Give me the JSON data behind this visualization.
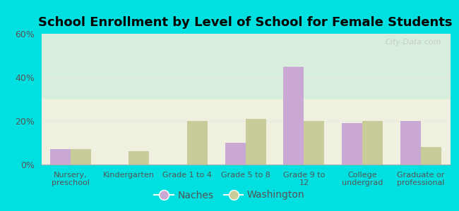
{
  "title": "School Enrollment by Level of School for Female Students",
  "categories": [
    "Nursery,\npreschool",
    "Kindergarten",
    "Grade 1 to 4",
    "Grade 5 to 8",
    "Grade 9 to\n12",
    "College\nundergrad",
    "Graduate or\nprofessional"
  ],
  "naches": [
    7,
    0,
    0,
    10,
    45,
    19,
    20
  ],
  "washington": [
    7,
    6,
    20,
    21,
    20,
    20,
    8
  ],
  "naches_color": "#c9a8d4",
  "washington_color": "#c8cc99",
  "background_outer": "#00e0e0",
  "background_inner_top": "#d8eedd",
  "background_inner_bottom": "#f0f0e0",
  "ylim": [
    0,
    60
  ],
  "yticks": [
    0,
    20,
    40,
    60
  ],
  "ytick_labels": [
    "0%",
    "20%",
    "40%",
    "60%"
  ],
  "legend_naches": "Naches",
  "legend_washington": "Washington",
  "bar_width": 0.35,
  "grid_color": "#e8e8e8",
  "watermark": "City-Data.com",
  "watermark_color": "#c8c8c8"
}
